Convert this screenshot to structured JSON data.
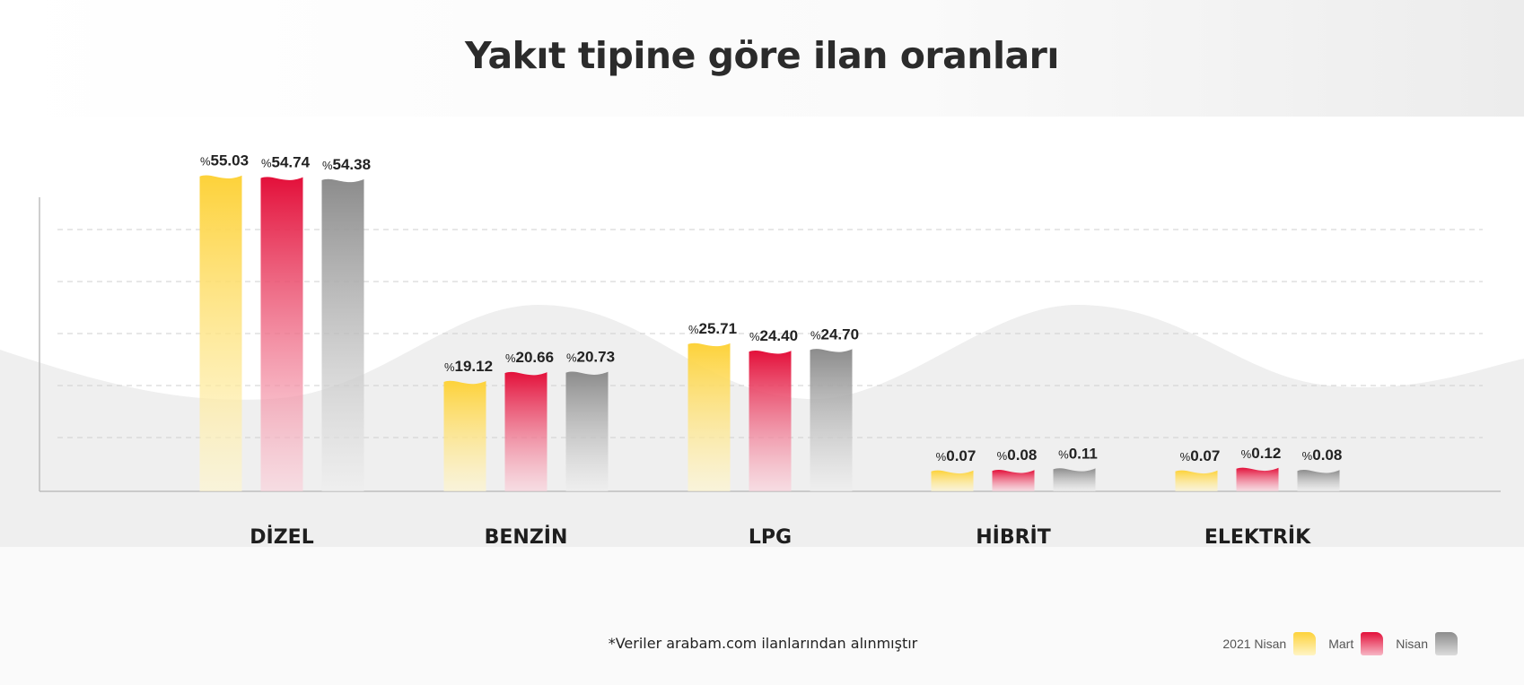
{
  "title": "Yakıt tipine göre ilan oranları",
  "footnote": "*Veriler arabam.com ilanlarından alınmıştır",
  "chart_data": {
    "type": "bar",
    "title": "Yakıt tipine göre ilan oranları",
    "categories": [
      "DİZEL",
      "BENZİN",
      "LPG",
      "HİBRİT",
      "ELEKTRİK"
    ],
    "value_prefix": "%",
    "series": [
      {
        "name": "2021 Nisan",
        "color": "#FDD23A",
        "values": [
          55.03,
          19.12,
          25.71,
          0.07,
          0.07
        ],
        "labels": [
          "55.03",
          "19.12",
          "25.71",
          "0.07",
          "0.07"
        ]
      },
      {
        "name": "Mart",
        "color": "#E3103A",
        "values": [
          54.74,
          20.66,
          24.4,
          0.08,
          0.12
        ],
        "labels": [
          "54.74",
          "20.66",
          "24.40",
          "0.08",
          "0.12"
        ]
      },
      {
        "name": "Nisan",
        "color": "#8C8C8C",
        "values": [
          54.38,
          20.73,
          24.7,
          0.11,
          0.08
        ],
        "labels": [
          "54.38",
          "20.73",
          "24.70",
          "0.11",
          "0.08"
        ]
      }
    ],
    "grid": true,
    "legend_position": "bottom-right"
  }
}
